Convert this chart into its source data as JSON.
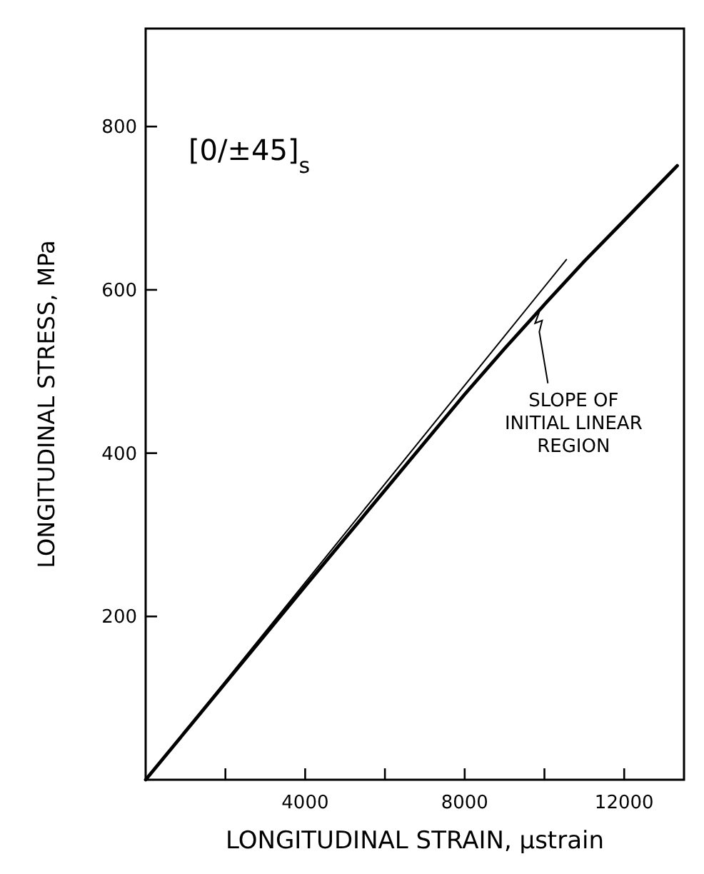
{
  "chart_data": {
    "type": "line",
    "xlabel": "LONGITUDINAL STRAIN, μstrain",
    "ylabel": "LONGITUDINAL STRESS, MPa",
    "xlim": [
      0,
      13500
    ],
    "ylim": [
      0,
      920
    ],
    "xticks": [
      {
        "value": 2000,
        "label": null
      },
      4000,
      {
        "value": 6000,
        "label": null
      },
      8000,
      {
        "value": 10000,
        "label": null
      },
      12000
    ],
    "yticks": [
      200,
      400,
      600,
      800
    ],
    "series": [
      {
        "color": "#000000",
        "x": [
          0,
          4000,
          8000,
          9000,
          10000,
          11000,
          12000,
          13330
        ],
        "values": [
          0,
          237,
          472,
          528,
          582,
          635,
          685,
          752
        ]
      },
      {
        "color": "#000000",
        "x": [
          0,
          10550
        ],
        "values": [
          0,
          637
        ]
      }
    ],
    "annotations": [
      "[0/±45]$_{s}$",
      {
        "text": "SLOPE OF\nINITIAL LINEAR\nREGION",
        "x": 9800,
        "y": 580
      }
    ],
    "grid": false
  }
}
